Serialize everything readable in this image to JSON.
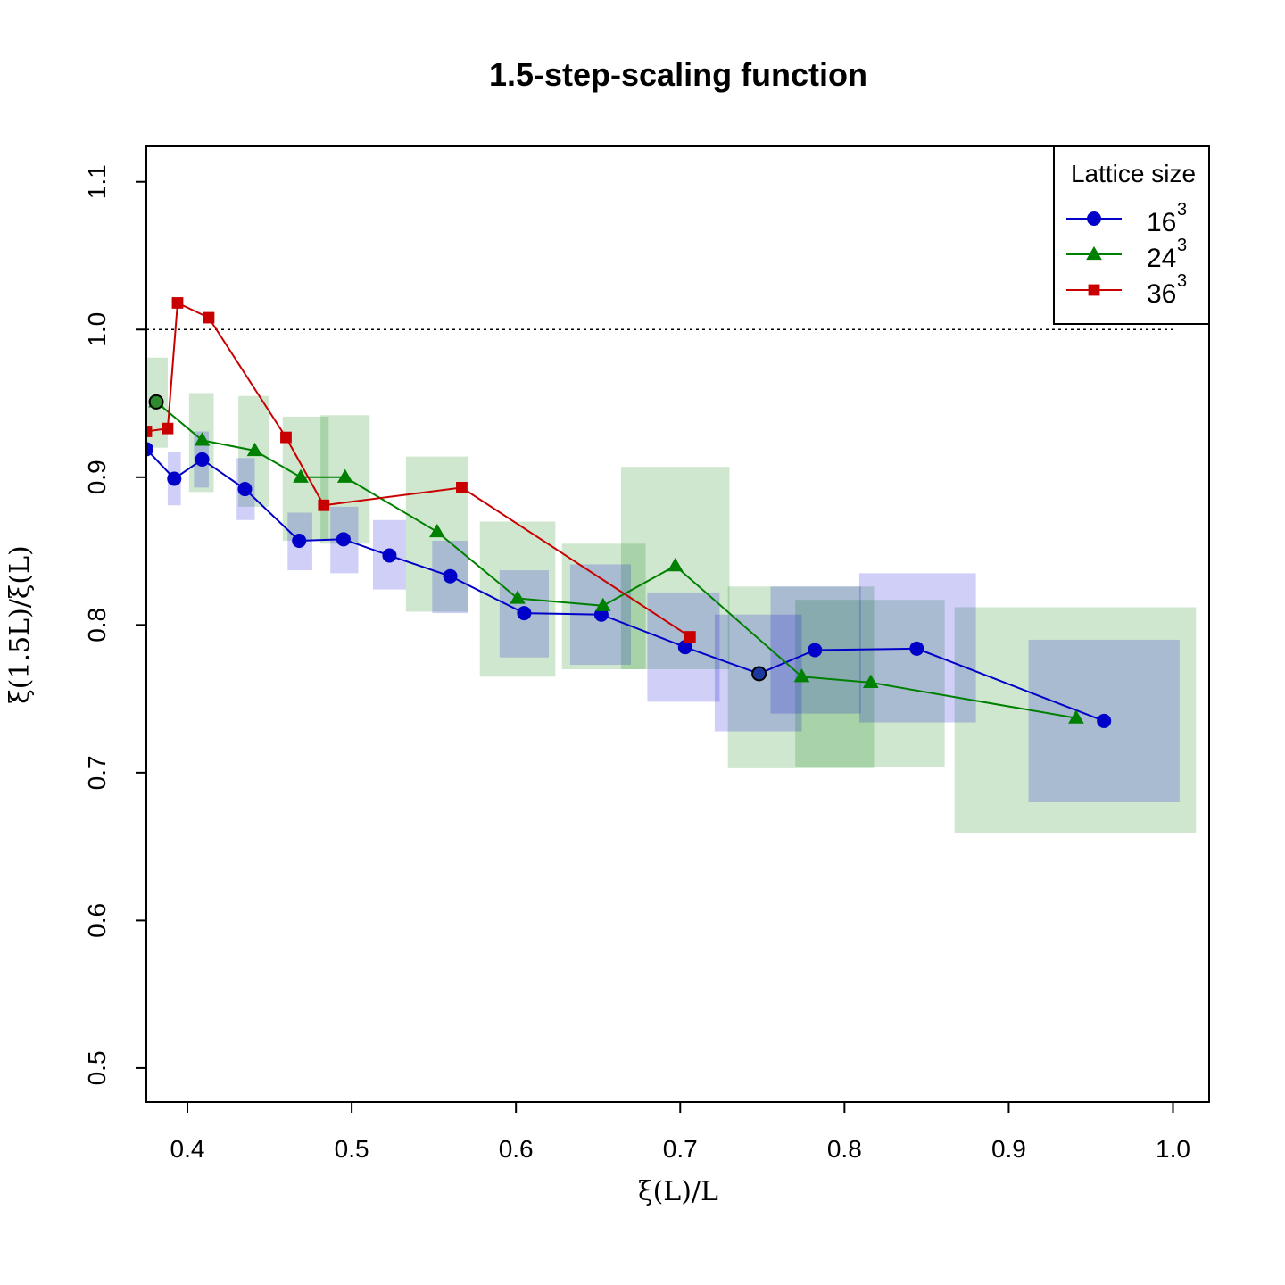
{
  "chart_data": {
    "type": "line",
    "title": "1.5-step-scaling function",
    "xlabel": "ξ(L)/L",
    "ylabel": "ξ(1.5L)/ξ(L)",
    "xlim": [
      0.375,
      1.022
    ],
    "ylim": [
      0.477,
      1.124
    ],
    "xticks": [
      "0.4",
      "0.5",
      "0.6",
      "0.7",
      "0.8",
      "0.9",
      "1.0"
    ],
    "yticks": [
      "0.5",
      "0.6",
      "0.7",
      "0.8",
      "0.9",
      "1.0",
      "1.1"
    ],
    "reference_line": 1.0,
    "grid": false,
    "legend": {
      "title": "Lattice size",
      "position": "top-right",
      "entries": [
        {
          "base": "16",
          "sup": "3"
        },
        {
          "base": "24",
          "sup": "3"
        },
        {
          "base": "36",
          "sup": "3"
        }
      ]
    },
    "series": [
      {
        "name": "16^3",
        "color": "#0000c8",
        "marker": "circle",
        "x": [
          0.375,
          0.392,
          0.409,
          0.435,
          0.468,
          0.495,
          0.523,
          0.56,
          0.605,
          0.652,
          0.703,
          0.748,
          0.782,
          0.844,
          0.958
        ],
        "y": [
          0.919,
          0.899,
          0.912,
          0.892,
          0.857,
          0.858,
          0.847,
          0.833,
          0.808,
          0.807,
          0.785,
          0.767,
          0.783,
          0.784,
          0.735
        ]
      },
      {
        "name": "24^3",
        "color": "#008000",
        "marker": "triangle",
        "x": [
          0.381,
          0.409,
          0.441,
          0.469,
          0.496,
          0.552,
          0.601,
          0.653,
          0.697,
          0.774,
          0.816,
          0.941
        ],
        "y": [
          0.951,
          0.925,
          0.918,
          0.9,
          0.9,
          0.863,
          0.818,
          0.813,
          0.84,
          0.765,
          0.761,
          0.737
        ]
      },
      {
        "name": "36^3",
        "color": "#c80000",
        "marker": "square",
        "x": [
          0.375,
          0.388,
          0.394,
          0.413,
          0.46,
          0.483,
          0.567,
          0.706
        ],
        "y": [
          0.931,
          0.933,
          1.018,
          1.008,
          0.927,
          0.881,
          0.893,
          0.792
        ]
      }
    ],
    "error_boxes": [
      {
        "series": "24^3",
        "x0": 0.37,
        "x1": 0.388,
        "y0": 0.92,
        "y1": 0.981
      },
      {
        "series": "24^3",
        "x0": 0.401,
        "x1": 0.416,
        "y0": 0.89,
        "y1": 0.957
      },
      {
        "series": "24^3",
        "x0": 0.431,
        "x1": 0.45,
        "y0": 0.88,
        "y1": 0.955
      },
      {
        "series": "24^3",
        "x0": 0.458,
        "x1": 0.486,
        "y0": 0.857,
        "y1": 0.941
      },
      {
        "series": "24^3",
        "x0": 0.481,
        "x1": 0.511,
        "y0": 0.855,
        "y1": 0.942
      },
      {
        "series": "24^3",
        "x0": 0.533,
        "x1": 0.571,
        "y0": 0.809,
        "y1": 0.914
      },
      {
        "series": "24^3",
        "x0": 0.578,
        "x1": 0.624,
        "y0": 0.765,
        "y1": 0.87
      },
      {
        "series": "24^3",
        "x0": 0.628,
        "x1": 0.679,
        "y0": 0.77,
        "y1": 0.855
      },
      {
        "series": "24^3",
        "x0": 0.664,
        "x1": 0.73,
        "y0": 0.77,
        "y1": 0.907
      },
      {
        "series": "24^3",
        "x0": 0.729,
        "x1": 0.818,
        "y0": 0.703,
        "y1": 0.826
      },
      {
        "series": "24^3",
        "x0": 0.77,
        "x1": 0.861,
        "y0": 0.704,
        "y1": 0.817
      },
      {
        "series": "24^3",
        "x0": 0.867,
        "x1": 1.014,
        "y0": 0.659,
        "y1": 0.812
      },
      {
        "series": "16^3",
        "x0": 0.388,
        "x1": 0.396,
        "y0": 0.881,
        "y1": 0.917
      },
      {
        "series": "16^3",
        "x0": 0.404,
        "x1": 0.413,
        "y0": 0.893,
        "y1": 0.931
      },
      {
        "series": "16^3",
        "x0": 0.43,
        "x1": 0.441,
        "y0": 0.871,
        "y1": 0.913
      },
      {
        "series": "16^3",
        "x0": 0.461,
        "x1": 0.476,
        "y0": 0.837,
        "y1": 0.876
      },
      {
        "series": "16^3",
        "x0": 0.487,
        "x1": 0.504,
        "y0": 0.835,
        "y1": 0.88
      },
      {
        "series": "16^3",
        "x0": 0.513,
        "x1": 0.533,
        "y0": 0.824,
        "y1": 0.871
      },
      {
        "series": "16^3",
        "x0": 0.549,
        "x1": 0.571,
        "y0": 0.808,
        "y1": 0.857
      },
      {
        "series": "16^3",
        "x0": 0.59,
        "x1": 0.62,
        "y0": 0.778,
        "y1": 0.837
      },
      {
        "series": "16^3",
        "x0": 0.633,
        "x1": 0.67,
        "y0": 0.773,
        "y1": 0.841
      },
      {
        "series": "16^3",
        "x0": 0.68,
        "x1": 0.724,
        "y0": 0.748,
        "y1": 0.822
      },
      {
        "series": "16^3",
        "x0": 0.721,
        "x1": 0.774,
        "y0": 0.728,
        "y1": 0.807
      },
      {
        "series": "16^3",
        "x0": 0.755,
        "x1": 0.81,
        "y0": 0.74,
        "y1": 0.826
      },
      {
        "series": "16^3",
        "x0": 0.809,
        "x1": 0.88,
        "y0": 0.734,
        "y1": 0.835
      },
      {
        "series": "16^3",
        "x0": 0.912,
        "x1": 1.004,
        "y0": 0.68,
        "y1": 0.79
      }
    ],
    "highlighted_points": [
      {
        "x": 0.381,
        "y": 0.951
      },
      {
        "x": 0.748,
        "y": 0.767
      }
    ]
  }
}
